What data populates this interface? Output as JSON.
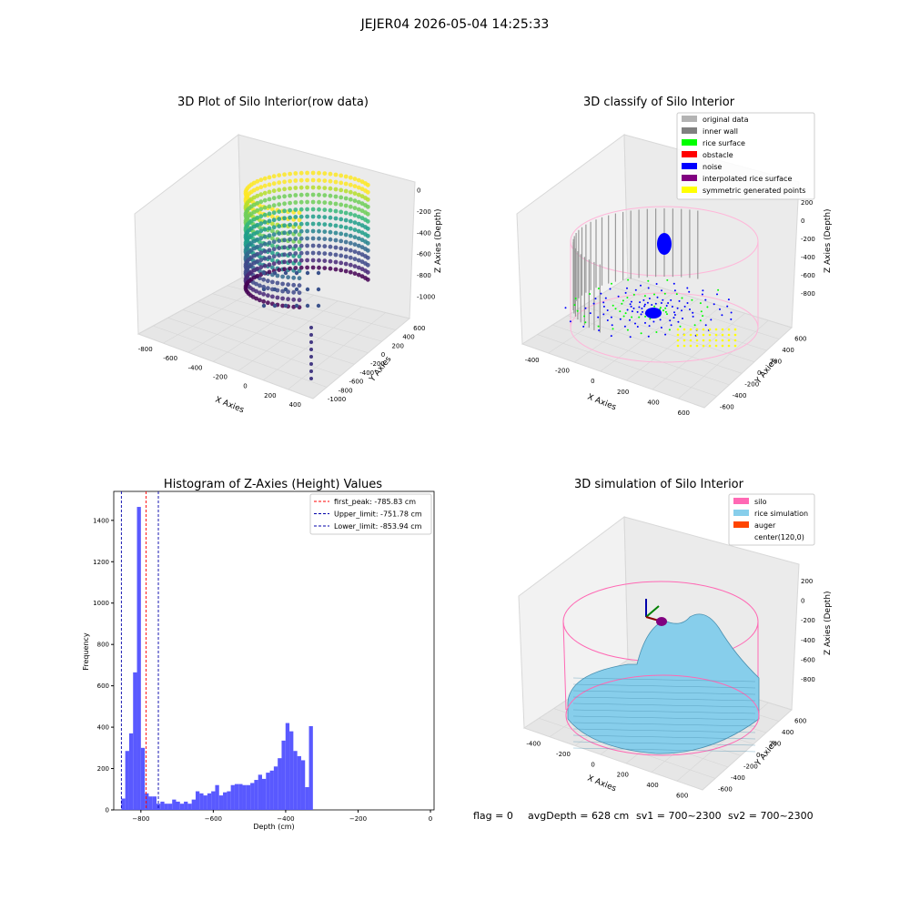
{
  "suptitle": "JEJER04 2026-05-04 14:25:33",
  "footer": {
    "flag": "flag = 0",
    "avg": "avgDepth = 628 cm",
    "sv1": "sv1 = 700~2300",
    "sv2": "sv2 = 700~2300"
  },
  "panels": {
    "raw": {
      "title": "3D Plot of Silo Interior(row data)",
      "xlabel": "X Axies",
      "ylabel": "Y Axies",
      "zlabel": "Z Axies (Depth)",
      "xticks": [
        "-800",
        "-600",
        "-400",
        "-200",
        "0",
        "200",
        "400"
      ],
      "yticks": [
        "-1000",
        "-800",
        "-600",
        "-400",
        "-200",
        "0",
        "200",
        "400",
        "600"
      ],
      "zticks": [
        "0",
        "-200",
        "-400",
        "-600",
        "-800",
        "-1000"
      ]
    },
    "classify": {
      "title": "3D classify of Silo Interior",
      "xlabel": "X Axies",
      "ylabel": "Y Axies",
      "zlabel": "Z Axies (Depth)",
      "xticks": [
        "-400",
        "-200",
        "0",
        "200",
        "400",
        "600"
      ],
      "yticks": [
        "-600",
        "-400",
        "-200",
        "0",
        "200",
        "400",
        "600"
      ],
      "zticks": [
        "200",
        "0",
        "-200",
        "-400",
        "-600",
        "-800"
      ],
      "legend": [
        {
          "label": "original data",
          "color": "#b3b3b3"
        },
        {
          "label": "inner wall",
          "color": "#808080"
        },
        {
          "label": "rice surface",
          "color": "#00ff00"
        },
        {
          "label": "obstacle",
          "color": "#ff0000"
        },
        {
          "label": "noise",
          "color": "#0000ff"
        },
        {
          "label": "interpolated rice surface",
          "color": "#800080"
        },
        {
          "label": "symmetric generated points",
          "color": "#ffff00"
        }
      ]
    },
    "simulation": {
      "title": "3D simulation of Silo Interior",
      "xlabel": "X Axies",
      "ylabel": "Y Axies",
      "zlabel": "Z Axies (Depth)",
      "xticks": [
        "-400",
        "-200",
        "0",
        "200",
        "400",
        "600"
      ],
      "yticks": [
        "-600",
        "-400",
        "-200",
        "0",
        "200",
        "400",
        "600"
      ],
      "zticks": [
        "200",
        "0",
        "-200",
        "-400",
        "-600",
        "-800"
      ],
      "legend": [
        {
          "label": "silo",
          "color": "#ff69b4"
        },
        {
          "label": "rice simulation",
          "color": "#87ceeb"
        },
        {
          "label": "auger",
          "color": "#ff4500"
        },
        {
          "label": "center(120,0)",
          "color": "#ffffff"
        }
      ]
    }
  },
  "chart_data": [
    {
      "type": "bar",
      "title": "Histogram of Z-Axies (Height) Values",
      "xlabel": "Depth (cm)",
      "ylabel": "Frequency",
      "xlim": [
        -875,
        10
      ],
      "ylim": [
        0,
        1540
      ],
      "xticks": [
        -800,
        -600,
        -400,
        -200,
        0
      ],
      "yticks": [
        0,
        200,
        400,
        600,
        800,
        1000,
        1200,
        1400
      ],
      "bin_start": -854,
      "bin_width": 10.8,
      "values": [
        55,
        285,
        370,
        665,
        1465,
        300,
        80,
        65,
        65,
        30,
        40,
        30,
        30,
        50,
        40,
        30,
        40,
        30,
        50,
        90,
        80,
        70,
        80,
        90,
        120,
        70,
        85,
        90,
        120,
        125,
        125,
        120,
        120,
        130,
        145,
        170,
        150,
        180,
        190,
        210,
        250,
        335,
        420,
        380,
        285,
        260,
        240,
        110,
        405
      ],
      "color": "#5050ff",
      "vlines": [
        {
          "label": "first_peak: -785.83 cm",
          "value": -785.83,
          "color": "#ff0000"
        },
        {
          "label": "Upper_limit: -751.78 cm",
          "value": -751.78,
          "color": "#0000aa"
        },
        {
          "label": "Lower_limit: -853.94 cm",
          "value": -853.94,
          "color": "#0000aa"
        }
      ],
      "legend_position": "top-right"
    }
  ]
}
